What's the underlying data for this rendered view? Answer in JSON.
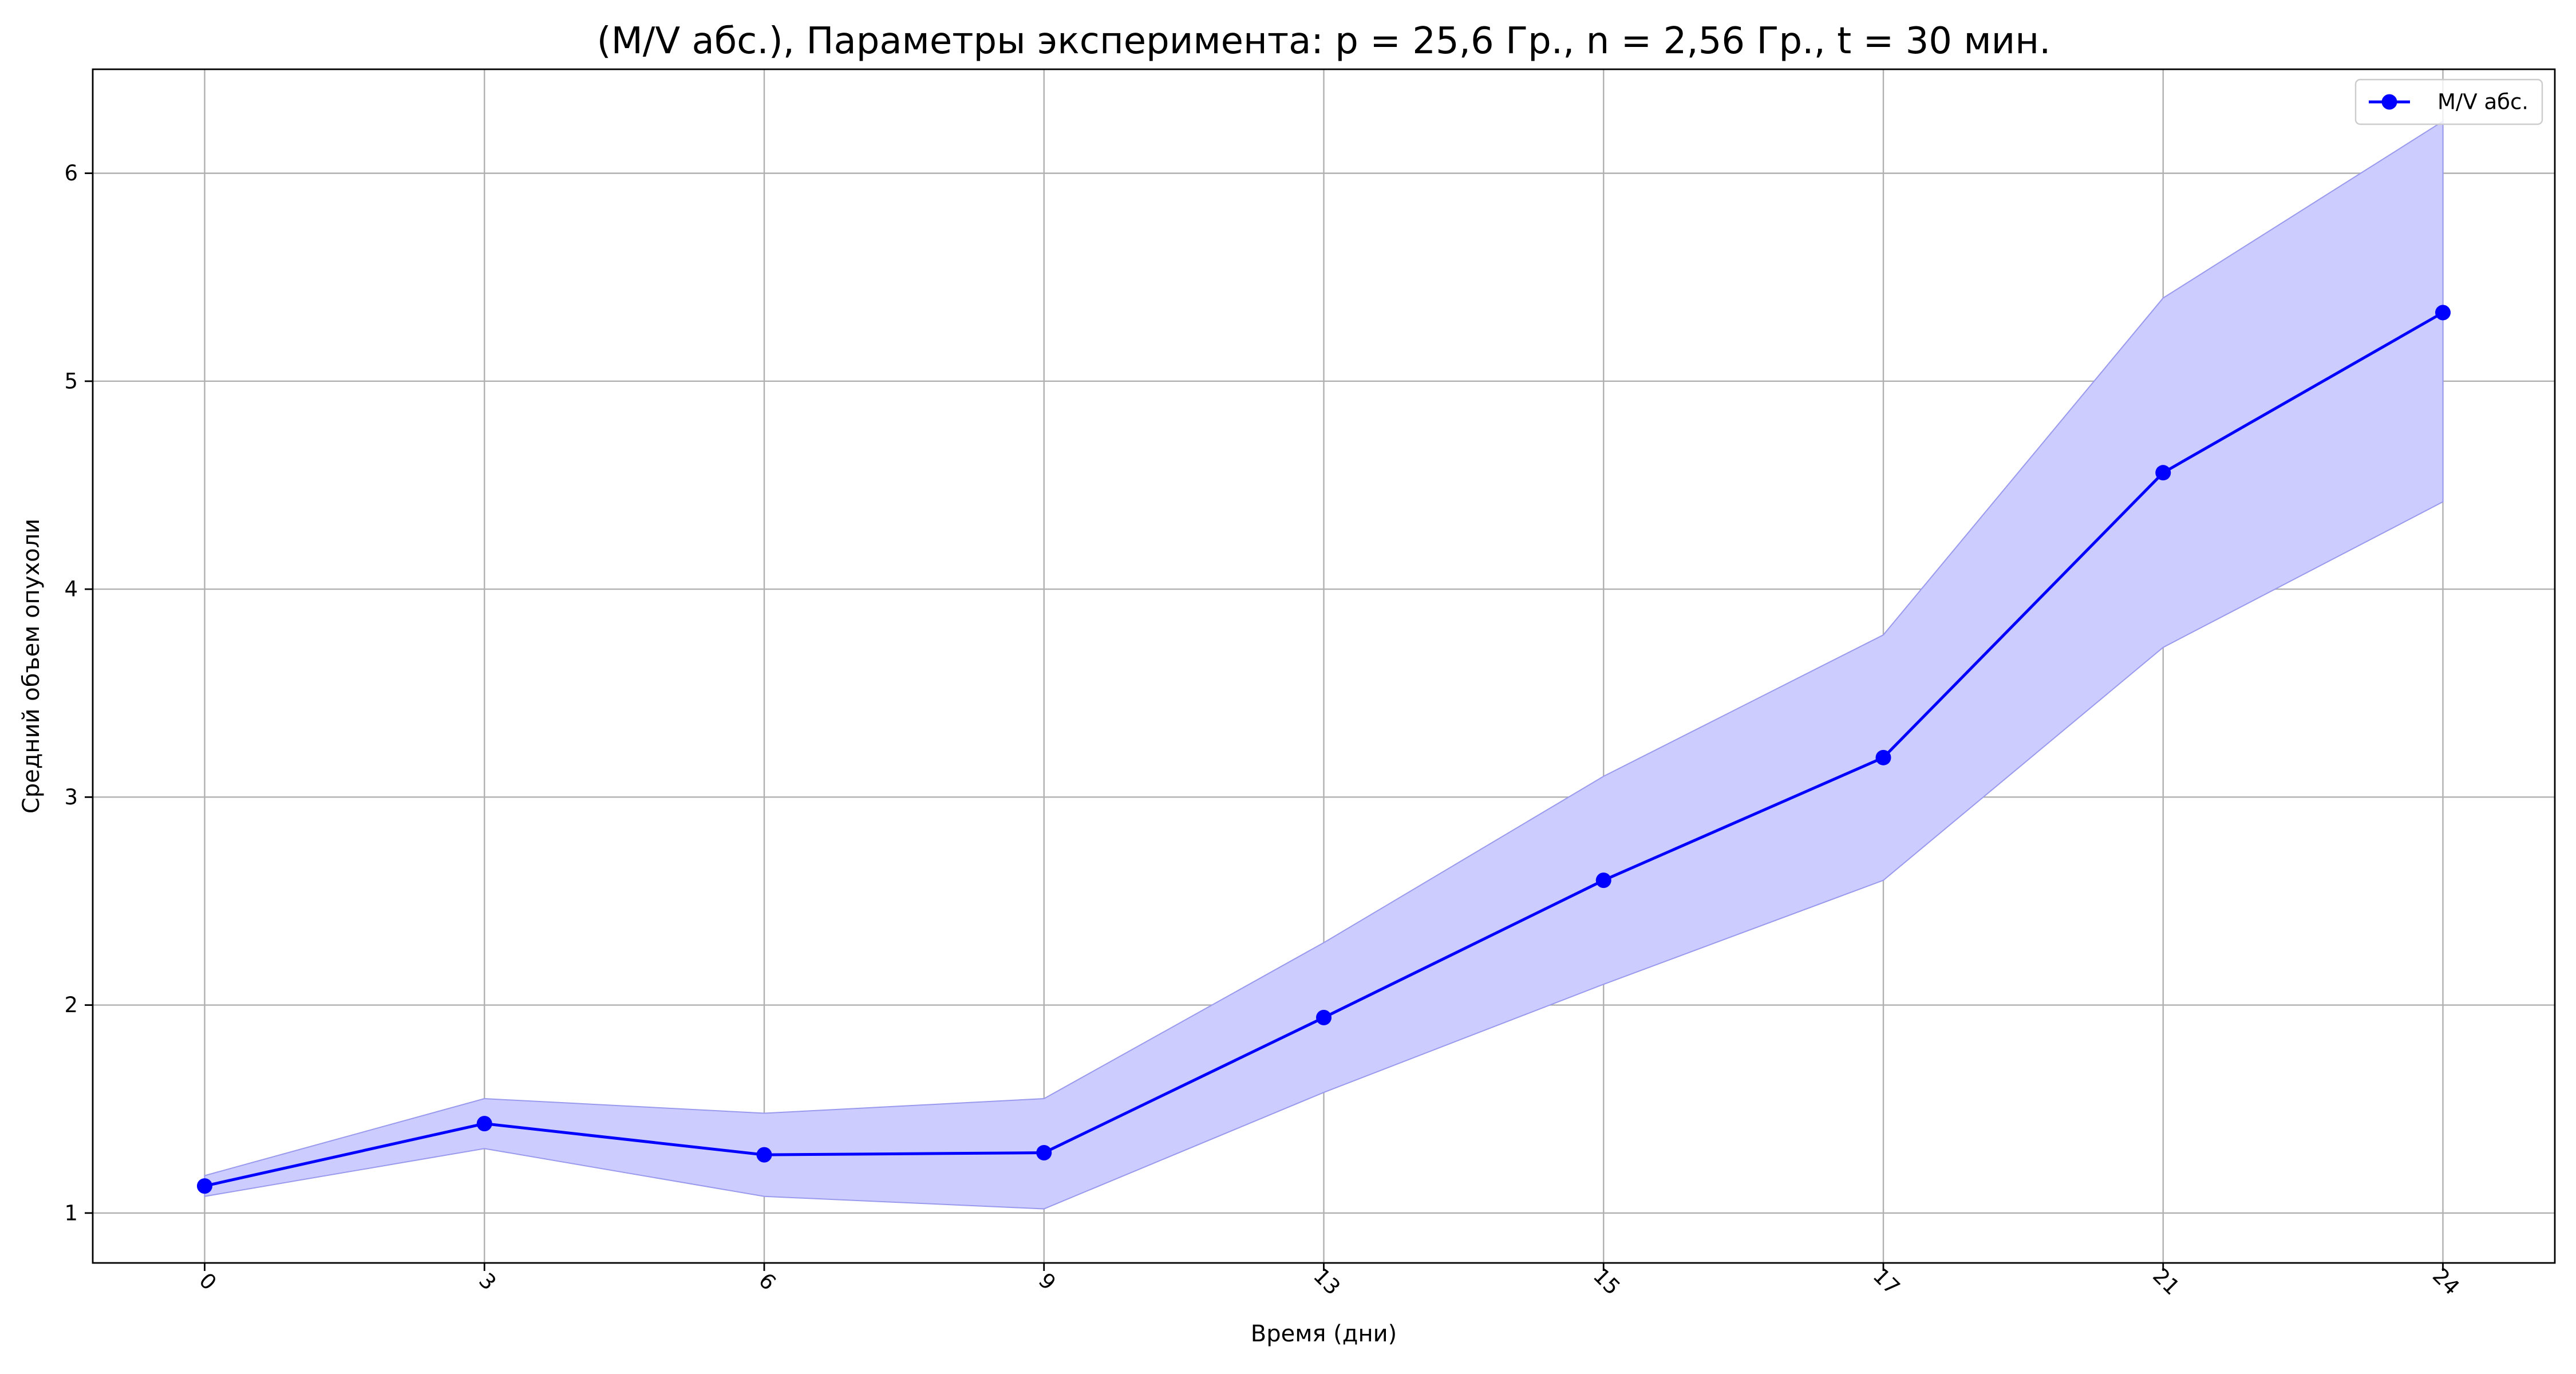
{
  "chart_data": {
    "type": "line",
    "title": "(M/V абс.), Параметры эксперимента: p = 25,6 Гр., n = 2,56 Гр., t = 30 мин.",
    "xlabel": "Время (дни)",
    "ylabel": "Средний объем опухоли",
    "categories": [
      "0",
      "3",
      "6",
      "9",
      "13",
      "15",
      "17",
      "21",
      "24"
    ],
    "yticks": [
      "1",
      "2",
      "3",
      "4",
      "5",
      "6"
    ],
    "ylim": [
      0.76,
      6.5
    ],
    "grid": true,
    "legend_position": "top-right",
    "series": [
      {
        "name": "M/V абс.",
        "color": "#0000ff",
        "marker": "circle",
        "values": [
          1.13,
          1.43,
          1.28,
          1.29,
          1.94,
          2.6,
          3.19,
          4.56,
          5.33
        ],
        "band_upper": [
          1.18,
          1.55,
          1.48,
          1.55,
          2.3,
          3.1,
          3.78,
          5.4,
          6.25
        ],
        "band_lower": [
          1.08,
          1.31,
          1.08,
          1.02,
          1.58,
          2.1,
          2.6,
          3.72,
          4.42
        ],
        "band_color": "#ccccff"
      }
    ]
  }
}
